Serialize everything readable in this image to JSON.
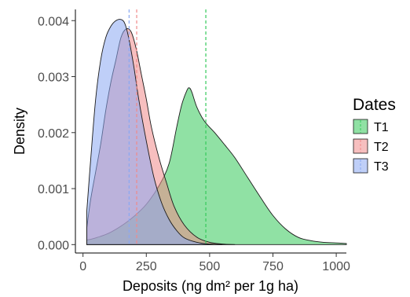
{
  "chart_data": {
    "type": "area",
    "xlabel": "Deposits (ng dm² per 1g ha)",
    "ylabel": "Density",
    "xlim": [
      -30,
      1040
    ],
    "ylim": [
      -0.00015,
      0.0042
    ],
    "x_ticks": [
      0,
      250,
      500,
      750,
      1000
    ],
    "x_tick_labels": [
      "0",
      "250",
      "500",
      "750",
      "1000"
    ],
    "y_ticks": [
      0,
      0.001,
      0.002,
      0.003,
      0.004
    ],
    "y_tick_labels": [
      "0.000",
      "0.001",
      "0.002",
      "0.003",
      "0.004"
    ],
    "grid": false,
    "legend": {
      "title": "Dates",
      "position": "right"
    },
    "series": [
      {
        "name": "T1",
        "color": "#34c95a",
        "mean": 485,
        "x": [
          15,
          50,
          100,
          150,
          200,
          250,
          300,
          340,
          370,
          390,
          410,
          420,
          430,
          450,
          480,
          520,
          560,
          600,
          650,
          700,
          750,
          800,
          850,
          900,
          950,
          1000,
          1040
        ],
        "y": [
          8e-05,
          0.00012,
          0.0002,
          0.00033,
          0.0005,
          0.00072,
          0.00105,
          0.00145,
          0.0021,
          0.0025,
          0.00275,
          0.0028,
          0.00272,
          0.00245,
          0.0022,
          0.002,
          0.00178,
          0.00155,
          0.0012,
          0.00085,
          0.00052,
          0.00028,
          0.00013,
          7e-05,
          4e-05,
          3e-05,
          2e-05
        ]
      },
      {
        "name": "T2",
        "color": "#f08a8a",
        "mean": 212,
        "x": [
          15,
          30,
          50,
          70,
          90,
          110,
          130,
          150,
          170,
          190,
          210,
          230,
          250,
          270,
          300,
          330,
          360,
          400,
          450,
          500,
          550,
          600
        ],
        "y": [
          0.0003,
          0.0008,
          0.0013,
          0.0018,
          0.0024,
          0.0029,
          0.0033,
          0.0037,
          0.00385,
          0.0038,
          0.0035,
          0.00305,
          0.0026,
          0.0021,
          0.00155,
          0.0011,
          0.00068,
          0.00035,
          0.00013,
          4e-05,
          1e-05,
          0.0
        ]
      },
      {
        "name": "T3",
        "color": "#8aa8f2",
        "mean": 182,
        "x": [
          15,
          30,
          50,
          70,
          90,
          110,
          130,
          150,
          165,
          180,
          200,
          220,
          250,
          280,
          310,
          340,
          370,
          400,
          450,
          500,
          550
        ],
        "y": [
          0.0006,
          0.0015,
          0.0026,
          0.0033,
          0.0037,
          0.0039,
          0.004,
          0.00402,
          0.00395,
          0.0037,
          0.0032,
          0.0026,
          0.00185,
          0.0012,
          0.00075,
          0.00045,
          0.00025,
          0.00012,
          4e-05,
          1e-05,
          0.0
        ]
      }
    ]
  }
}
